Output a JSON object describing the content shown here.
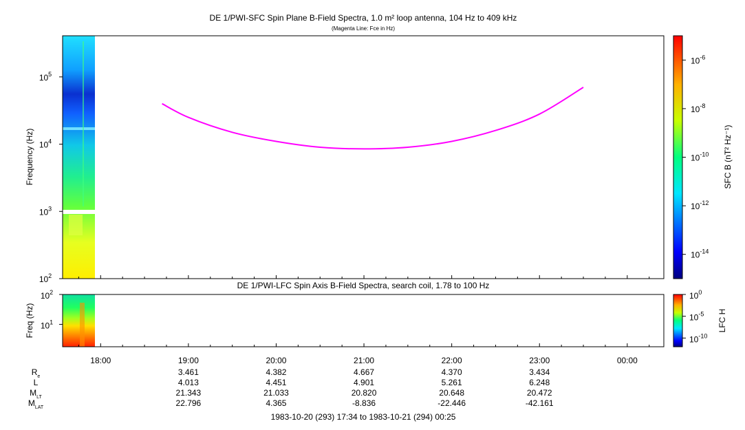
{
  "page": {
    "title": "DE 1/PWI-SFC  Spin Plane B-Field Spectra, 1.0 m² loop antenna, 104 Hz to 409 kHz",
    "subtitle": "(Magenta Line: Fce in Hz)",
    "panel2_title": "DE 1/PWI-LFC  Spin Axis B-Field Spectra, search coil, 1.78 to 100 Hz",
    "time_range": "1983-10-20 (293) 17:34 to 1983-10-21 (294) 00:25"
  },
  "chart_data": [
    {
      "type": "heatmap",
      "name": "SFC spectrogram",
      "xlabel": "",
      "ylabel": "Frequency (Hz)",
      "yscale": "log",
      "ylim": [
        100,
        409000
      ],
      "ytick_labels": [
        {
          "base": "10",
          "exp": "5",
          "value": 100000
        },
        {
          "base": "10",
          "exp": "4",
          "value": 10000
        },
        {
          "base": "10",
          "exp": "3",
          "value": 1000
        },
        {
          "base": "10",
          "exp": "2",
          "value": 100
        }
      ],
      "colorbar": {
        "label": "SFC B (nT² Hz⁻¹)",
        "scale": "log",
        "range": [
          1e-15,
          1e-05
        ],
        "tick_labels": [
          {
            "base": "10",
            "exp": "-6",
            "value": 1e-06
          },
          {
            "base": "10",
            "exp": "-8",
            "value": 1e-08
          },
          {
            "base": "10",
            "exp": "-10",
            "value": 1e-10
          },
          {
            "base": "10",
            "exp": "-12",
            "value": 1e-12
          },
          {
            "base": "10",
            "exp": "-14",
            "value": 1e-14
          }
        ]
      },
      "data_coverage": {
        "start": "17:34",
        "end": "17:55"
      },
      "series": [
        {
          "name": "Fce",
          "color": "#ff00ff",
          "x": [
            "18:42",
            "19:00",
            "19:30",
            "20:00",
            "20:30",
            "21:00",
            "21:30",
            "22:00",
            "22:30",
            "23:00",
            "23:30"
          ],
          "y": [
            40000,
            25000,
            15000,
            11000,
            9000,
            8500,
            9000,
            11000,
            16000,
            28000,
            70000
          ]
        }
      ]
    },
    {
      "type": "heatmap",
      "name": "LFC spectrogram",
      "ylabel": "Freq (Hz)",
      "yscale": "log",
      "ylim": [
        1.78,
        100
      ],
      "ytick_labels": [
        {
          "base": "10",
          "exp": "2",
          "value": 100
        },
        {
          "base": "10",
          "exp": "1",
          "value": 10
        }
      ],
      "colorbar": {
        "label": "LFC H",
        "scale": "log",
        "range": [
          1e-12,
          1
        ],
        "tick_labels": [
          {
            "base": "10",
            "exp": "0",
            "value": 1
          },
          {
            "base": "10",
            "exp": "-5",
            "value": 1e-05
          },
          {
            "base": "10",
            "exp": "-10",
            "value": 1e-10
          }
        ]
      },
      "data_coverage": {
        "start": "17:34",
        "end": "17:55"
      }
    }
  ],
  "time_axis": {
    "start": "17:34",
    "end": "00:25",
    "ticks": [
      "18:00",
      "19:00",
      "20:00",
      "21:00",
      "22:00",
      "23:00",
      "00:00"
    ]
  },
  "ephemeris": {
    "rows": [
      {
        "label": "R",
        "sub": "e",
        "values": [
          "",
          "3.461",
          "4.382",
          "4.667",
          "4.370",
          "3.434",
          ""
        ]
      },
      {
        "label": "L",
        "sub": "",
        "values": [
          "",
          "4.013",
          "4.451",
          "4.901",
          "5.261",
          "6.248",
          ""
        ]
      },
      {
        "label": "M",
        "sub": "LT",
        "values": [
          "",
          "21.343",
          "21.033",
          "20.820",
          "20.648",
          "20.472",
          ""
        ]
      },
      {
        "label": "M",
        "sub": "LAT",
        "values": [
          "",
          "22.796",
          "4.365",
          "-8.836",
          "-22.446",
          "-42.161",
          ""
        ]
      }
    ]
  }
}
